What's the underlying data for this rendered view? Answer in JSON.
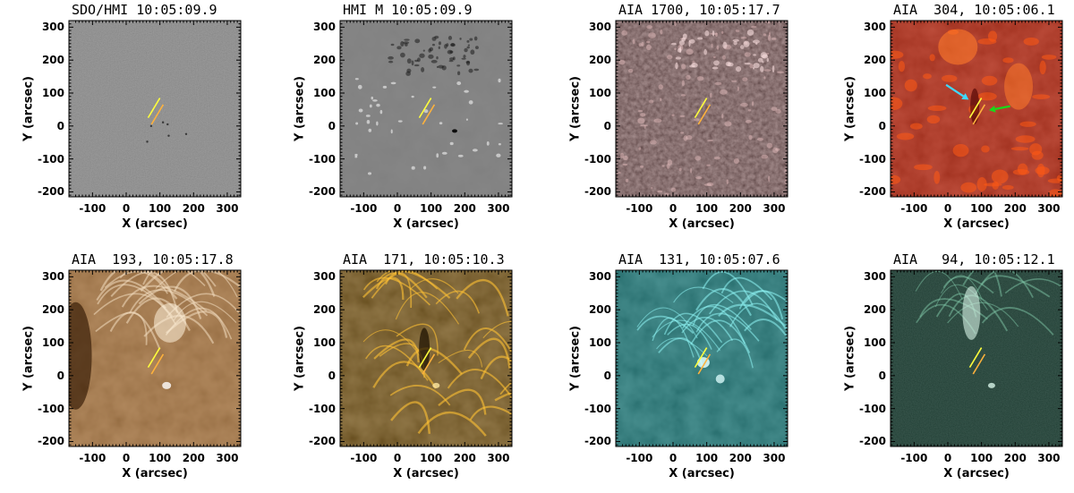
{
  "axis_units": {
    "x_label": "X (arcsec)",
    "y_label": "Y (arcsec)"
  },
  "x_ticks": [
    -100,
    0,
    100,
    200,
    300
  ],
  "y_ticks": [
    -200,
    -100,
    0,
    100,
    200,
    300
  ],
  "x_range": [
    -170,
    340
  ],
  "y_range": [
    -215,
    320
  ],
  "slits": {
    "upper": {
      "x": [
        65,
        100
      ],
      "y": [
        25,
        85
      ],
      "color": "#ffff3c"
    },
    "lower": {
      "x": [
        75,
        110
      ],
      "y": [
        5,
        65
      ],
      "color": "#ffb23c"
    }
  },
  "arrows": {
    "cyan_arrow_color": "#3fd9ff",
    "green_arrow_color": "#19d919"
  },
  "panels": [
    {
      "title": "SDO/HMI 10:05:09.9",
      "image": "hmi-continuum",
      "colormap": [
        "#6e6e6e",
        "#b4b4b4"
      ]
    },
    {
      "title": "HMI M 10:05:09.9",
      "image": "hmi-magnetogram",
      "colormap": [
        "#6e6e6e",
        "#b4b4b4"
      ]
    },
    {
      "title": "AIA 1700, 10:05:17.7",
      "image": "aia-1700",
      "colormap": [
        "#4a1616",
        "#d8a4a4"
      ]
    },
    {
      "title": "AIA  304, 10:05:06.1",
      "image": "aia-304",
      "colormap": [
        "#6a0000",
        "#ff9a3a"
      ]
    },
    {
      "title": "AIA  193, 10:05:17.8",
      "image": "aia-193",
      "colormap": [
        "#6a4016",
        "#ffe8c8"
      ]
    },
    {
      "title": "AIA  171, 10:05:10.3",
      "image": "aia-171",
      "colormap": [
        "#2a1a00",
        "#ffd05a"
      ]
    },
    {
      "title": "AIA  131, 10:05:07.6",
      "image": "aia-131",
      "colormap": [
        "#002a2a",
        "#b0ffff"
      ]
    },
    {
      "title": "AIA   94, 10:05:12.1",
      "image": "aia-94",
      "colormap": [
        "#001e14",
        "#c8f0dc"
      ]
    }
  ]
}
